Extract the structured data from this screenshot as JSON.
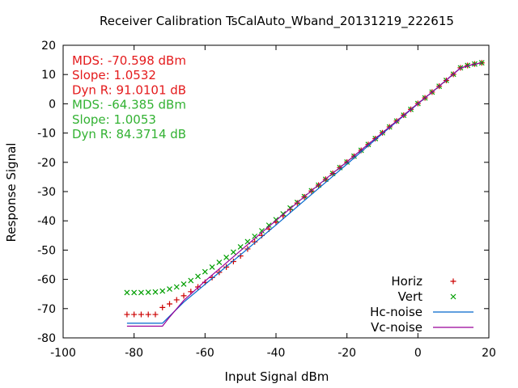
{
  "chart_data": {
    "type": "scatter",
    "title": "Receiver Calibration TsCalAuto_Wband_20131219_222615",
    "xlabel": "Input Signal dBm",
    "ylabel": "Response Signal",
    "xlim": [
      -100,
      20
    ],
    "ylim": [
      -80,
      20
    ],
    "xticks": [
      -100,
      -80,
      -60,
      -40,
      -20,
      0,
      20
    ],
    "yticks": [
      -80,
      -70,
      -60,
      -50,
      -40,
      -30,
      -20,
      -10,
      0,
      10,
      20
    ],
    "grid": false,
    "legend_position": "bottom-right",
    "annotations": [
      {
        "text": "MDS: -70.598 dBm",
        "color": "#e41a1c"
      },
      {
        "text": "Slope: 1.0532",
        "color": "#e41a1c"
      },
      {
        "text": "Dyn R: 91.0101 dB",
        "color": "#e41a1c"
      },
      {
        "text": "MDS: -64.385 dBm",
        "color": "#33b233"
      },
      {
        "text": "Slope: 1.0053",
        "color": "#33b233"
      },
      {
        "text": "Dyn R: 84.3714 dB",
        "color": "#33b233"
      }
    ],
    "series": [
      {
        "name": "Horiz",
        "marker": "plus",
        "color": "#cc0000",
        "points": [
          [
            -82,
            -72
          ],
          [
            -80,
            -72
          ],
          [
            -78,
            -72
          ],
          [
            -76,
            -72
          ],
          [
            -74,
            -72
          ],
          [
            -72,
            -69.6
          ],
          [
            -70,
            -68.4
          ],
          [
            -68,
            -67
          ],
          [
            -66,
            -65.6
          ],
          [
            -64,
            -64.2
          ],
          [
            -62,
            -62.6
          ],
          [
            -60,
            -61
          ],
          [
            -58,
            -59.4
          ],
          [
            -56,
            -57.6
          ],
          [
            -54,
            -55.8
          ],
          [
            -52,
            -53.9
          ],
          [
            -50,
            -52
          ],
          [
            -48,
            -49.6
          ],
          [
            -46,
            -47.2
          ],
          [
            -44,
            -45
          ],
          [
            -42,
            -42.8
          ],
          [
            -40,
            -40.5
          ],
          [
            -38,
            -38.3
          ],
          [
            -36,
            -36.1
          ],
          [
            -34,
            -33.9
          ],
          [
            -32,
            -31.8
          ],
          [
            -30,
            -29.8
          ],
          [
            -28,
            -27.8
          ],
          [
            -26,
            -25.8
          ],
          [
            -24,
            -23.8
          ],
          [
            -22,
            -21.8
          ],
          [
            -20,
            -19.9
          ],
          [
            -18,
            -17.9
          ],
          [
            -16,
            -15.9
          ],
          [
            -14,
            -13.9
          ],
          [
            -12,
            -11.9
          ],
          [
            -10,
            -9.9
          ],
          [
            -8,
            -7.9
          ],
          [
            -6,
            -5.9
          ],
          [
            -4,
            -3.9
          ],
          [
            -2,
            -1.9
          ],
          [
            0,
            0.1
          ],
          [
            2,
            2
          ],
          [
            4,
            4
          ],
          [
            6,
            6
          ],
          [
            8,
            8
          ],
          [
            10,
            10.1
          ],
          [
            12,
            12.3
          ],
          [
            14,
            13.1
          ],
          [
            16,
            13.6
          ],
          [
            18,
            14
          ]
        ]
      },
      {
        "name": "Vert",
        "marker": "cross",
        "color": "#009e00",
        "points": [
          [
            -82,
            -64.5
          ],
          [
            -80,
            -64.5
          ],
          [
            -78,
            -64.5
          ],
          [
            -76,
            -64.4
          ],
          [
            -74,
            -64.3
          ],
          [
            -72,
            -64
          ],
          [
            -70,
            -63.3
          ],
          [
            -68,
            -62.6
          ],
          [
            -66,
            -61.6
          ],
          [
            -64,
            -60.4
          ],
          [
            -62,
            -59
          ],
          [
            -60,
            -57.4
          ],
          [
            -58,
            -55.8
          ],
          [
            -56,
            -54.2
          ],
          [
            -54,
            -52.5
          ],
          [
            -52,
            -50.7
          ],
          [
            -50,
            -48.9
          ],
          [
            -48,
            -47.1
          ],
          [
            -46,
            -45.3
          ],
          [
            -44,
            -43.4
          ],
          [
            -42,
            -41.5
          ],
          [
            -40,
            -39.6
          ],
          [
            -38,
            -37.6
          ],
          [
            -36,
            -35.6
          ],
          [
            -34,
            -33.7
          ],
          [
            -32,
            -31.7
          ],
          [
            -30,
            -29.7
          ],
          [
            -28,
            -27.8
          ],
          [
            -26,
            -25.8
          ],
          [
            -24,
            -23.8
          ],
          [
            -22,
            -21.8
          ],
          [
            -20,
            -19.9
          ],
          [
            -18,
            -17.9
          ],
          [
            -16,
            -15.9
          ],
          [
            -14,
            -13.9
          ],
          [
            -12,
            -11.9
          ],
          [
            -10,
            -9.9
          ],
          [
            -8,
            -7.9
          ],
          [
            -6,
            -5.9
          ],
          [
            -4,
            -3.9
          ],
          [
            -2,
            -1.9
          ],
          [
            0,
            0.1
          ],
          [
            2,
            2
          ],
          [
            4,
            4
          ],
          [
            6,
            6
          ],
          [
            8,
            8
          ],
          [
            10,
            10.1
          ],
          [
            12,
            12.3
          ],
          [
            14,
            13.1
          ],
          [
            16,
            13.6
          ],
          [
            18,
            14
          ]
        ]
      },
      {
        "name": "Hc-noise",
        "marker": "line",
        "color": "#0066cc",
        "points": [
          [
            -82,
            -75
          ],
          [
            -72,
            -75
          ],
          [
            -70,
            -72.6
          ],
          [
            -66,
            -67.8
          ],
          [
            -60,
            -61.7
          ],
          [
            -55,
            -56.6
          ],
          [
            -50,
            -51.6
          ],
          [
            -45,
            -46.5
          ],
          [
            -40,
            -41.4
          ],
          [
            -35,
            -36.2
          ],
          [
            -30,
            -31
          ],
          [
            -25,
            -25.8
          ],
          [
            -20,
            -20.6
          ],
          [
            -15,
            -15.4
          ],
          [
            -10,
            -10.2
          ],
          [
            -5,
            -5.1
          ],
          [
            0,
            0
          ],
          [
            5,
            5
          ],
          [
            10,
            10.2
          ],
          [
            12,
            12.2
          ],
          [
            15,
            13.3
          ],
          [
            18,
            14
          ]
        ]
      },
      {
        "name": "Vc-noise",
        "marker": "line",
        "color": "#990099",
        "points": [
          [
            -82,
            -76
          ],
          [
            -72,
            -76
          ],
          [
            -70,
            -72.9
          ],
          [
            -66,
            -67.2
          ],
          [
            -60,
            -60.6
          ],
          [
            -55,
            -55.4
          ],
          [
            -50,
            -50.2
          ],
          [
            -45,
            -45
          ],
          [
            -40,
            -39.9
          ],
          [
            -35,
            -34.8
          ],
          [
            -30,
            -29.7
          ],
          [
            -25,
            -24.7
          ],
          [
            -20,
            -19.8
          ],
          [
            -15,
            -14.8
          ],
          [
            -10,
            -9.9
          ],
          [
            -5,
            -4.9
          ],
          [
            0,
            0.1
          ],
          [
            5,
            5
          ],
          [
            10,
            10.2
          ],
          [
            12,
            12.2
          ],
          [
            15,
            13.3
          ],
          [
            18,
            14
          ]
        ]
      }
    ]
  }
}
